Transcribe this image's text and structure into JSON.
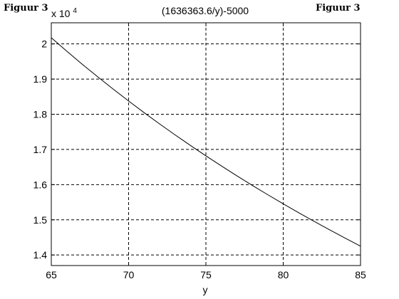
{
  "figure_label_left": "Figuur 3",
  "figure_label_right": "Figuur 3",
  "chart_data": {
    "type": "line",
    "title": "(1636363.6/y)-5000",
    "xlabel": "y",
    "ylabel": "",
    "y_multiplier_base": "x 10",
    "y_multiplier_exponent": "4",
    "xlim": [
      65,
      85
    ],
    "ylim": [
      13700,
      20600
    ],
    "x_ticks": [
      65,
      70,
      75,
      80,
      85
    ],
    "x_tick_labels": [
      "65",
      "70",
      "75",
      "80",
      "85"
    ],
    "y_ticks": [
      14000,
      15000,
      16000,
      17000,
      18000,
      19000,
      20000
    ],
    "y_tick_labels": [
      "1.4",
      "1.5",
      "1.6",
      "1.7",
      "1.8",
      "1.9",
      "2"
    ],
    "grid": true,
    "grid_style": "dashed",
    "series": [
      {
        "x": [
          65,
          66,
          67,
          68,
          69,
          70,
          71,
          72,
          73,
          74,
          75,
          76,
          77,
          78,
          79,
          80,
          81,
          82,
          83,
          84,
          85
        ],
        "y": [
          20174.8,
          19793.4,
          19423.3,
          19064.2,
          18715.4,
          18376.6,
          18047.4,
          17727.3,
          17415.9,
          17113.0,
          16818.2,
          16531.1,
          16251.5,
          15979.0,
          15713.5,
          15454.5,
          15201.8,
          14955.7,
          14715.2,
          14480.5,
          14251.3
        ],
        "color": "#000000"
      }
    ]
  }
}
